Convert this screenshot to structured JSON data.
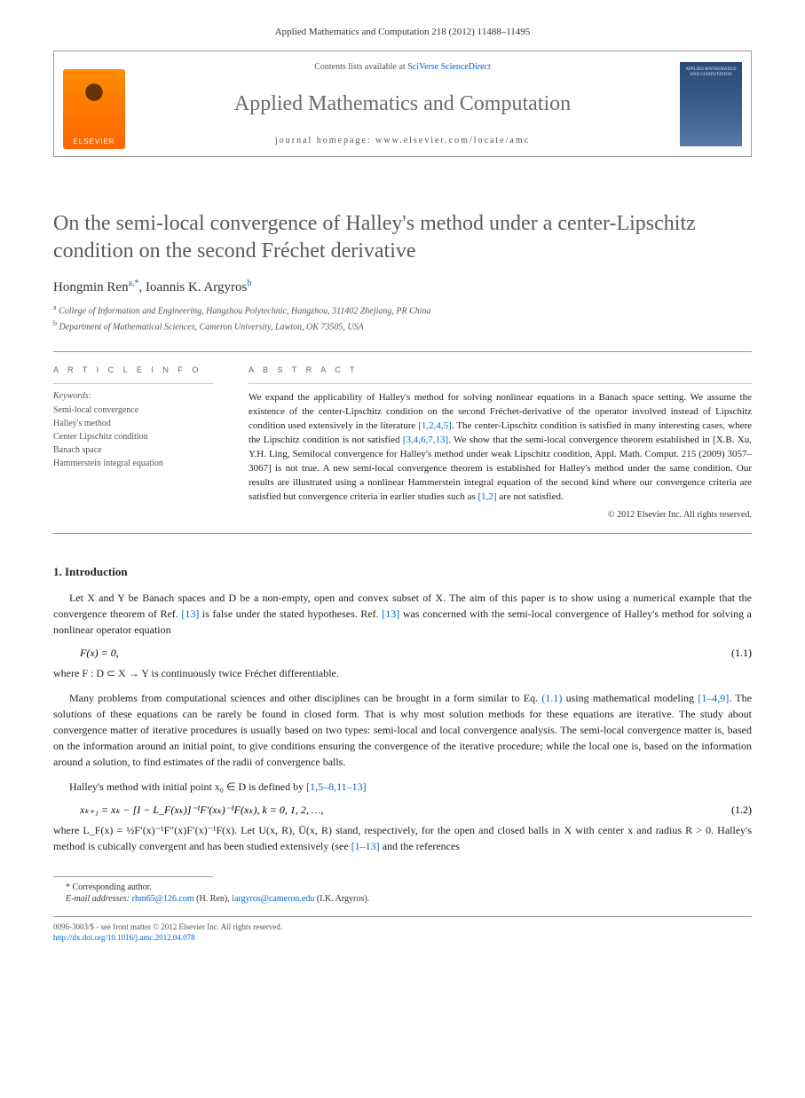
{
  "header": {
    "citation": "Applied Mathematics and Computation 218 (2012) 11488–11495",
    "contents_prefix": "Contents lists available at ",
    "contents_link": "SciVerse ScienceDirect",
    "journal_name": "Applied Mathematics and Computation",
    "homepage_prefix": "journal homepage: ",
    "homepage_url": "www.elsevier.com/locate/amc",
    "elsevier_label": "ELSEVIER",
    "cover_text": "APPLIED MATHEMATICS AND COMPUTATION"
  },
  "article": {
    "title": "On the semi-local convergence of Halley's method under a center-Lipschitz condition on the second Fréchet derivative",
    "authors": [
      {
        "name": "Hongmin Ren",
        "sup": "a,",
        "star": "*"
      },
      {
        "name": "Ioannis K. Argyros",
        "sup": "b"
      }
    ],
    "affiliations": [
      {
        "sup": "a",
        "text": "College of Information and Engineering, Hangzhou Polytechnic, Hangzhou, 311402 Zhejiang, PR China"
      },
      {
        "sup": "b",
        "text": "Department of Mathematical Sciences, Cameron University, Lawton, OK 73505, USA"
      }
    ]
  },
  "info": {
    "heading": "A R T I C L E   I N F O",
    "keywords_label": "Keywords:",
    "keywords": [
      "Semi-local convergence",
      "Halley's method",
      "Center Lipschitz condition",
      "Banach space",
      "Hammerstein integral equation"
    ]
  },
  "abstract": {
    "heading": "A B S T R A C T",
    "text_parts": [
      "We expand the applicability of Halley's method for solving nonlinear equations in a Banach space setting. We assume the existence of the center-Lipschitz condition on the second Fréchet-derivative of the operator involved instead of Lipschitz condition used extensively in the literature ",
      "[1,2,4,5]",
      ". The center-Lipschitz condition is satisfied in many interesting cases, where the Lipschitz condition is not satisfied ",
      "[3,4,6,7,13]",
      ". We show that the semi-local convergence theorem established in [X.B. Xu, Y.H. Ling, Semilocal convergence for Halley's method under weak Lipschitz condition, Appl. Math. Comput. 215 (2009) 3057–3067] is not true. A new semi-local convergence theorem is established for Halley's method under the same condition. Our results are illustrated using a nonlinear Hammerstein integral equation of the second kind where our convergence criteria are satisfied but convergence criteria in earlier studies such as ",
      "[1,2]",
      " are not satisfied."
    ],
    "copyright": "© 2012 Elsevier Inc. All rights reserved."
  },
  "intro": {
    "heading": "1. Introduction",
    "p1_a": "Let X and Y be Banach spaces and D be a non-empty, open and convex subset of X. The aim of this paper is to show using a numerical example that the convergence theorem of Ref. ",
    "p1_ref1": "[13]",
    "p1_b": " is false under the stated hypotheses. Ref. ",
    "p1_ref2": "[13]",
    "p1_c": " was concerned with the semi-local convergence of Halley's method for solving a nonlinear operator equation",
    "eq1": "F(x) = 0,",
    "eq1_num": "(1.1)",
    "p2": "where F : D ⊂ X → Y is continuously twice Fréchet differentiable.",
    "p3_a": "Many problems from computational sciences and other disciplines can be brought in a form similar to Eq. ",
    "p3_ref1": "(1.1)",
    "p3_b": " using mathematical modeling ",
    "p3_ref2": "[1–4,9]",
    "p3_c": ". The solutions of these equations can be rarely be found in closed form. That is why most solution methods for these equations are iterative. The study about convergence matter of iterative procedures is usually based on two types: semi-local and local convergence analysis. The semi-local convergence matter is, based on the information around an initial point, to give conditions ensuring the convergence of the iterative procedure; while the local one is, based on the information around a solution, to find estimates of the radii of convergence balls.",
    "p4_a": "Halley's method with initial point x₀ ∈ D is defined by ",
    "p4_ref": "[1,5–8,11–13]",
    "eq2": "xₖ₊₁ = xₖ − [I − L_F(xₖ)]⁻¹F′(xₖ)⁻¹F(xₖ),    k = 0, 1, 2, …,",
    "eq2_num": "(1.2)",
    "p5_a": "where L_F(x) = ½F′(x)⁻¹F″(x)F′(x)⁻¹F(x). Let U(x, R),  Ū(x, R) stand, respectively, for the open and closed balls in X with center x and radius R > 0. Halley's method is cubically convergent and has been studied extensively (see ",
    "p5_ref": "[1–13]",
    "p5_b": " and the references"
  },
  "footnotes": {
    "corr": "* Corresponding author.",
    "email_label": "E-mail addresses: ",
    "email1": "rhm65@126.com",
    "email1_who": " (H. Ren), ",
    "email2": "iargyros@cameron.edu",
    "email2_who": " (I.K. Argyros)."
  },
  "bottom": {
    "line1": "0096-3003/$ - see front matter © 2012 Elsevier Inc. All rights reserved.",
    "doi": "http://dx.doi.org/10.1016/j.amc.2012.04.078"
  },
  "colors": {
    "link": "#0066cc",
    "text": "#222222",
    "muted": "#555555",
    "title_gray": "#5a5a5a",
    "elsevier_orange": "#ff6600",
    "cover_blue": "#3a5a8a"
  },
  "fonts": {
    "body": "Times New Roman",
    "heading": "Georgia",
    "body_size_pt": 12,
    "title_size_pt": 24,
    "abstract_size_pt": 11,
    "footnote_size_pt": 10
  }
}
